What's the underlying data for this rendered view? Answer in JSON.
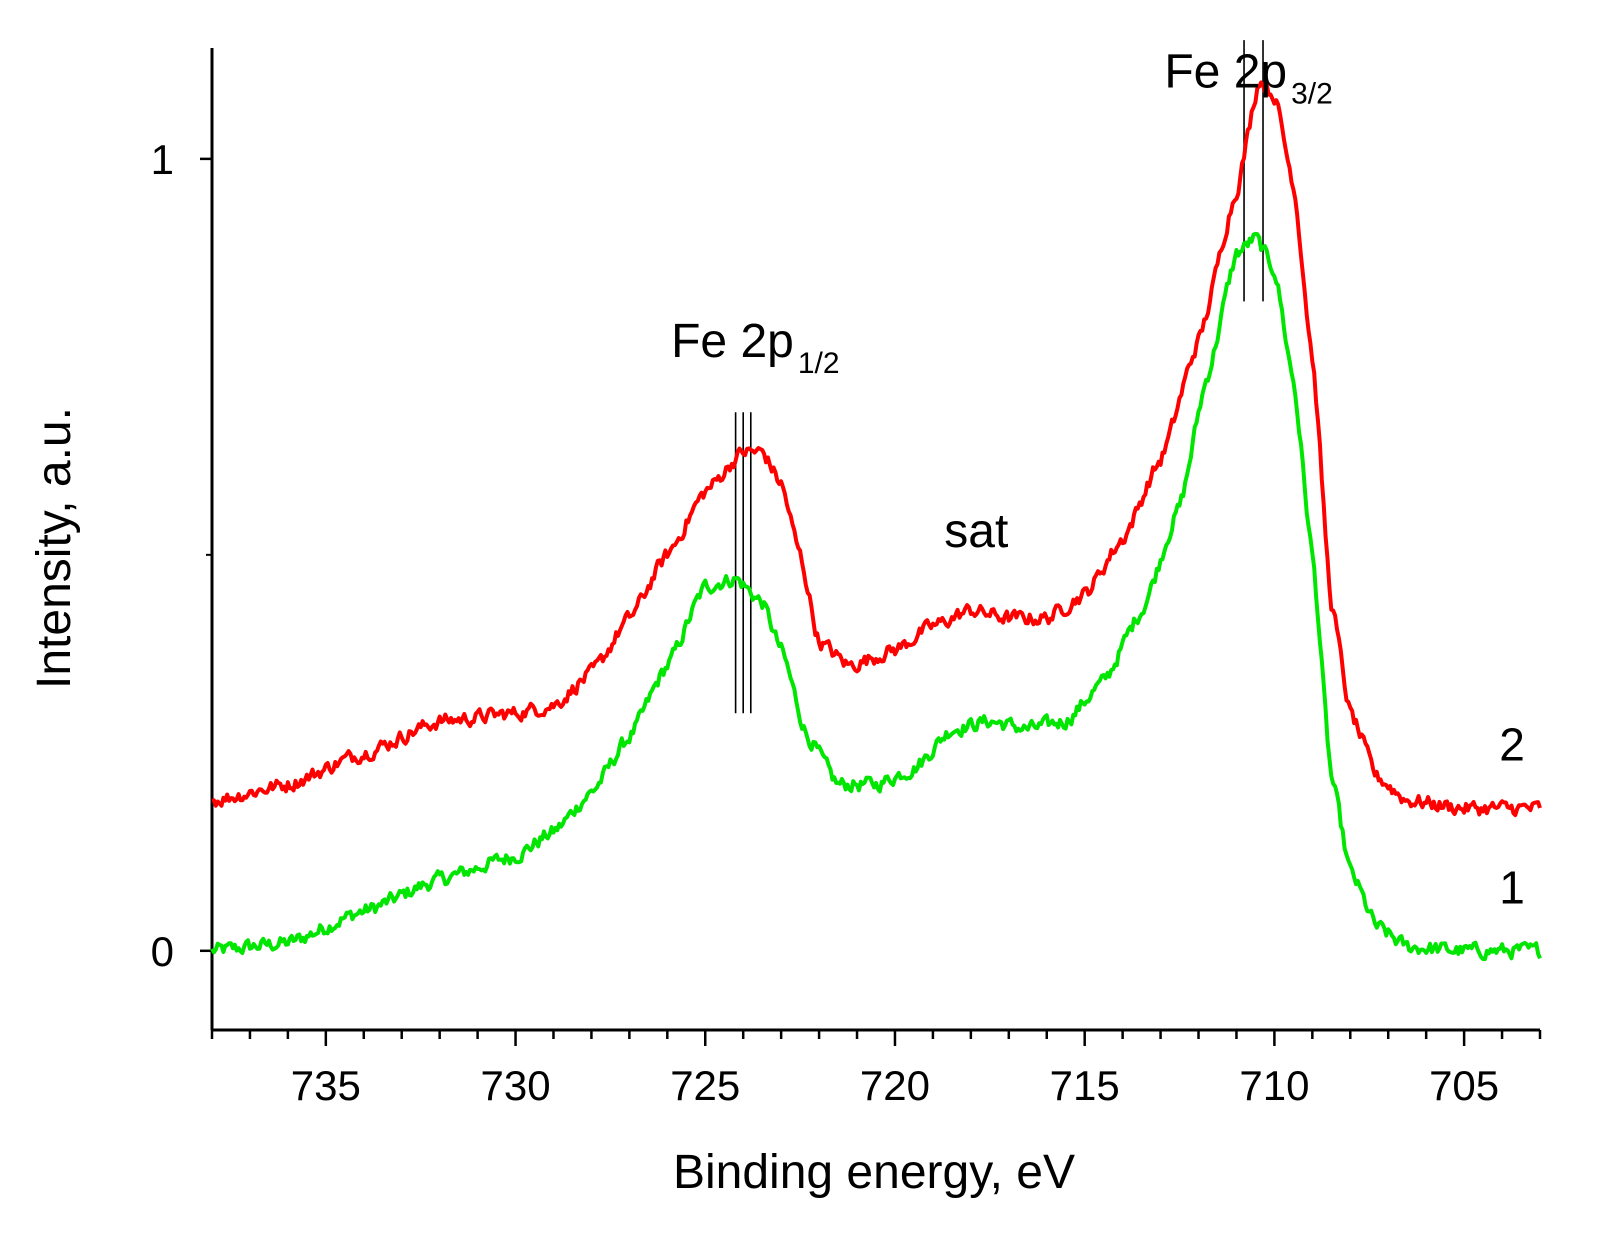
{
  "chart_data": {
    "type": "line",
    "title": "",
    "xlabel": "Binding energy, eV",
    "ylabel": "Intensity, a.u.",
    "xlim": [
      738,
      703
    ],
    "ylim": [
      -0.1,
      1.14
    ],
    "x_reversed": true,
    "x_ticks": [
      735,
      730,
      725,
      720,
      715,
      710,
      705
    ],
    "x_tick_labels": [
      "735",
      "730",
      "725",
      "720",
      "715",
      "710",
      "705"
    ],
    "y_ticks": [
      0,
      1
    ],
    "y_tick_labels": [
      "0",
      "1"
    ],
    "series": [
      {
        "name": "1",
        "color": "#00e600",
        "points": [
          [
            738,
            0.0
          ],
          [
            736,
            0.01
          ],
          [
            734,
            0.05
          ],
          [
            732,
            0.09
          ],
          [
            730,
            0.12
          ],
          [
            729,
            0.15
          ],
          [
            728,
            0.2
          ],
          [
            727,
            0.27
          ],
          [
            726,
            0.36
          ],
          [
            725,
            0.46
          ],
          [
            724.2,
            0.47
          ],
          [
            723.5,
            0.44
          ],
          [
            723,
            0.38
          ],
          [
            722.3,
            0.27
          ],
          [
            721.5,
            0.21
          ],
          [
            720.5,
            0.21
          ],
          [
            719.5,
            0.23
          ],
          [
            718.5,
            0.28
          ],
          [
            717.5,
            0.29
          ],
          [
            716.5,
            0.28
          ],
          [
            715.5,
            0.29
          ],
          [
            714.5,
            0.34
          ],
          [
            713.5,
            0.43
          ],
          [
            712.5,
            0.56
          ],
          [
            711.8,
            0.72
          ],
          [
            711,
            0.88
          ],
          [
            710.5,
            0.9
          ],
          [
            710,
            0.86
          ],
          [
            709.5,
            0.72
          ],
          [
            709,
            0.5
          ],
          [
            708.5,
            0.22
          ],
          [
            708,
            0.1
          ],
          [
            707.3,
            0.03
          ],
          [
            706.5,
            0.005
          ],
          [
            705,
            0.0
          ],
          [
            703,
            0.0
          ]
        ]
      },
      {
        "name": "2",
        "color": "#ff0000",
        "points": [
          [
            738,
            0.19
          ],
          [
            736,
            0.21
          ],
          [
            734,
            0.25
          ],
          [
            732,
            0.29
          ],
          [
            730,
            0.3
          ],
          [
            729,
            0.31
          ],
          [
            728,
            0.35
          ],
          [
            727,
            0.42
          ],
          [
            726,
            0.5
          ],
          [
            725,
            0.58
          ],
          [
            724,
            0.63
          ],
          [
            723.5,
            0.63
          ],
          [
            723,
            0.59
          ],
          [
            722.5,
            0.5
          ],
          [
            722,
            0.39
          ],
          [
            721.2,
            0.36
          ],
          [
            720,
            0.38
          ],
          [
            719,
            0.41
          ],
          [
            718,
            0.43
          ],
          [
            717,
            0.42
          ],
          [
            716,
            0.42
          ],
          [
            715,
            0.45
          ],
          [
            714,
            0.52
          ],
          [
            713,
            0.62
          ],
          [
            712,
            0.77
          ],
          [
            711,
            0.96
          ],
          [
            710.4,
            1.1
          ],
          [
            710,
            1.08
          ],
          [
            709.5,
            0.97
          ],
          [
            709,
            0.75
          ],
          [
            708.5,
            0.44
          ],
          [
            708,
            0.3
          ],
          [
            707.3,
            0.22
          ],
          [
            706.5,
            0.19
          ],
          [
            705,
            0.18
          ],
          [
            703,
            0.18
          ]
        ]
      }
    ],
    "reference_lines": [
      {
        "x": 724.2,
        "ymin": 0.3,
        "ymax": 0.68
      },
      {
        "x": 724.0,
        "ymin": 0.3,
        "ymax": 0.68
      },
      {
        "x": 723.8,
        "ymin": 0.3,
        "ymax": 0.68
      },
      {
        "x": 710.8,
        "ymin": 0.82,
        "ymax": 1.15
      },
      {
        "x": 710.3,
        "ymin": 0.82,
        "ymax": 1.15
      }
    ],
    "annotations": [
      {
        "text": "Fe 2p",
        "sub": "1/2",
        "x": 725.9,
        "y": 0.75
      },
      {
        "text": "Fe 2p",
        "sub": "3/2",
        "x": 712.9,
        "y": 1.09
      },
      {
        "text": "sat",
        "x": 718.7,
        "y": 0.51
      }
    ],
    "series_labels": [
      {
        "text": "2",
        "x": 703.4,
        "y": 0.24
      },
      {
        "text": "1",
        "x": 703.4,
        "y": 0.06
      }
    ]
  }
}
